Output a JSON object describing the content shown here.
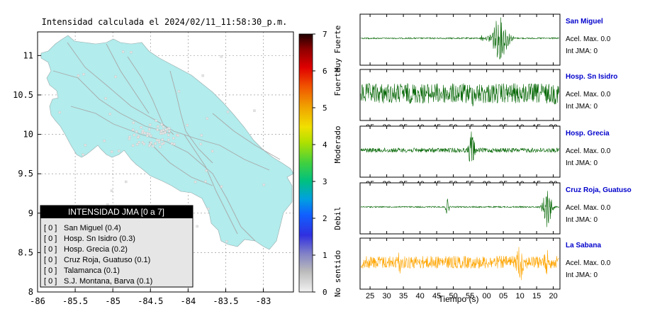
{
  "map": {
    "title": "Intensidad calculada el 2024/02/11_11:58:30_p.m.",
    "x_ticks": [
      "-86",
      "-85.5",
      "-85",
      "-84.5",
      "-84",
      "-83.5",
      "-83"
    ],
    "y_ticks": [
      "8",
      "8.5",
      "9",
      "9.5",
      "10",
      "10.5",
      "11"
    ],
    "xlim": [
      -86,
      -82.6
    ],
    "ylim": [
      8,
      11.3
    ],
    "land_color": "#b2eced"
  },
  "colorbar": {
    "ticks": [
      "0",
      "1",
      "2",
      "3",
      "4",
      "5",
      "6",
      "7"
    ],
    "range": [
      0,
      7
    ],
    "labels": [
      "No sentido",
      "Debil",
      "Moderado",
      "Fuerte",
      "Muy Fuerte"
    ]
  },
  "legend": {
    "title": "INTENSIDAD JMA [0 a 7]",
    "items": [
      {
        "level": "[ 0 ]",
        "label": "San Miguel (0.4)"
      },
      {
        "level": "[ 0 ]",
        "label": "Hosp. Sn Isidro (0.3)"
      },
      {
        "level": "[ 0 ]",
        "label": "Hosp. Grecia (0.2)"
      },
      {
        "level": "[ 0 ]",
        "label": "Cruz Roja, Guatuso (0.1)"
      },
      {
        "level": "[ 0 ]",
        "label": "Talamanca (0.1)"
      },
      {
        "level": "[ 0 ]",
        "label": "S.J. Montana, Barva (0.1)"
      }
    ]
  },
  "chart_data": {
    "type": "line",
    "xlabel": "Tiempo (s)",
    "x_ticks": [
      "25",
      "30",
      "35",
      "40",
      "45",
      "50",
      "55",
      "00",
      "05",
      "10",
      "15",
      "20"
    ],
    "series": [
      {
        "name": "San Miguel",
        "accel_label": "Acel. Max. 0.0",
        "jma_label": "Int JMA: 0",
        "color": "#006400",
        "noise": 0.03,
        "bursts": [
          {
            "center": 64.0,
            "width": 2.6,
            "amp": 0.95
          },
          {
            "center": 58.6,
            "width": 0.4,
            "amp": 0.2
          }
        ]
      },
      {
        "name": "Hosp. Sn Isidro",
        "accel_label": "Acel. Max. 0.0",
        "jma_label": "Int JMA: 0",
        "color": "#006400",
        "noise": 0.45,
        "bursts": [
          {
            "center": 55.8,
            "width": 0.5,
            "amp": 0.6
          },
          {
            "center": 80.6,
            "width": 0.8,
            "amp": 0.5
          }
        ]
      },
      {
        "name": "Hosp. Grecia",
        "accel_label": "Acel. Max. 0.0",
        "jma_label": "Int JMA: 0",
        "color": "#006400",
        "noise": 0.1,
        "bursts": [
          {
            "center": 55.5,
            "width": 0.9,
            "amp": 0.95
          }
        ]
      },
      {
        "name": "Cruz Roja, Guatuso",
        "accel_label": "Acel. Max. 0.0",
        "jma_label": "Int JMA: 0",
        "color": "#006400",
        "noise": 0.03,
        "bursts": [
          {
            "center": 48.2,
            "width": 0.6,
            "amp": 0.35
          },
          {
            "center": 78.2,
            "width": 1.3,
            "amp": 0.95
          }
        ]
      },
      {
        "name": "La Sabana",
        "accel_label": "Acel. Max. 0.0",
        "jma_label": "Int JMA: 0",
        "color": "#ffa500",
        "noise": 0.28,
        "bursts": [
          {
            "center": 33.8,
            "width": 0.4,
            "amp": 0.7
          },
          {
            "center": 70.0,
            "width": 1.2,
            "amp": 0.9
          },
          {
            "center": 78.0,
            "width": 1.0,
            "amp": 0.6
          }
        ]
      }
    ]
  }
}
